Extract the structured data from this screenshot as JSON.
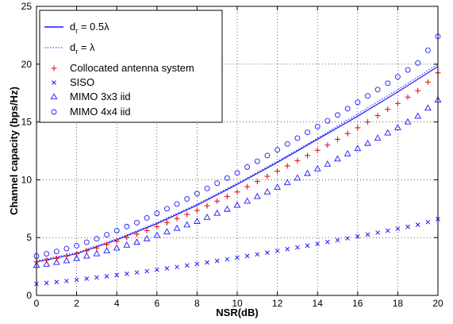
{
  "chart_data": {
    "type": "line",
    "title": "",
    "xlabel": "NSR(dB)",
    "ylabel": "Channel capacity (bps/Hz)",
    "xlim": [
      0,
      20
    ],
    "ylim": [
      0,
      25
    ],
    "xticks": [
      "0",
      "2",
      "4",
      "6",
      "8",
      "10",
      "12",
      "14",
      "16",
      "18",
      "20"
    ],
    "yticks": [
      "0",
      "5",
      "10",
      "15",
      "20",
      "25"
    ],
    "grid": "dotted",
    "legend_position": "top-left",
    "colors": {
      "blue": "#1a1aff",
      "red": "#ee1111",
      "black": "#000000"
    },
    "legend": [
      {
        "sub_prefix": "d",
        "sub": "r",
        "suffix": " = 0.5λ"
      },
      {
        "sub_prefix": "d",
        "sub": "r",
        "suffix": " = λ"
      },
      {
        "text": "Collocated antenna system"
      },
      {
        "text": "SISO"
      },
      {
        "text": "MIMO 3x3 iid"
      },
      {
        "text": "MIMO 4x4 iid"
      }
    ],
    "series": [
      {
        "name": "d_r = 0.5λ",
        "style": "line",
        "color": "#1a1aff",
        "x": [
          0,
          2,
          4,
          6,
          8,
          10,
          12,
          14,
          16,
          18,
          20
        ],
        "y": [
          2.9,
          3.6,
          4.8,
          6.2,
          7.8,
          9.6,
          11.5,
          13.5,
          15.5,
          17.6,
          19.8
        ]
      },
      {
        "name": "d_r = λ",
        "style": "dotted",
        "color": "#1a1aff",
        "x": [
          0,
          2,
          4,
          6,
          8,
          10,
          12,
          14,
          16,
          18,
          20
        ],
        "y": [
          3.0,
          3.7,
          4.9,
          6.3,
          7.9,
          9.7,
          11.6,
          13.6,
          15.7,
          17.8,
          20.0
        ]
      },
      {
        "name": "Collocated antenna system",
        "style": "plus",
        "color": "#ee1111",
        "x": [
          0,
          0.5,
          1,
          1.5,
          2,
          2.5,
          3,
          3.5,
          4,
          4.5,
          5,
          5.5,
          6,
          6.5,
          7,
          7.5,
          8,
          8.5,
          9,
          9.5,
          10,
          10.5,
          11,
          11.5,
          12,
          12.5,
          13,
          13.5,
          14,
          14.5,
          15,
          15.5,
          16,
          16.5,
          17,
          17.5,
          18,
          18.5,
          19,
          19.5,
          20
        ],
        "y": [
          2.9,
          3.05,
          3.2,
          3.4,
          3.6,
          3.85,
          4.1,
          4.4,
          4.7,
          5.0,
          5.3,
          5.6,
          5.95,
          6.3,
          6.65,
          7.0,
          7.35,
          7.75,
          8.15,
          8.55,
          8.95,
          9.4,
          9.85,
          10.3,
          10.75,
          11.2,
          11.65,
          12.1,
          12.55,
          13.0,
          13.5,
          14.0,
          14.5,
          15.0,
          15.55,
          16.1,
          16.6,
          17.15,
          17.7,
          18.45,
          19.25
        ]
      },
      {
        "name": "SISO",
        "style": "x",
        "color": "#1a1aff",
        "x": [
          0,
          0.5,
          1,
          1.5,
          2,
          2.5,
          3,
          3.5,
          4,
          4.5,
          5,
          5.5,
          6,
          6.5,
          7,
          7.5,
          8,
          8.5,
          9,
          9.5,
          10,
          10.5,
          11,
          11.5,
          12,
          12.5,
          13,
          13.5,
          14,
          14.5,
          15,
          15.5,
          16,
          16.5,
          17,
          17.5,
          18,
          18.5,
          19,
          19.5,
          20
        ],
        "y": [
          1.0,
          1.08,
          1.16,
          1.25,
          1.35,
          1.45,
          1.55,
          1.65,
          1.76,
          1.87,
          1.98,
          2.1,
          2.22,
          2.34,
          2.46,
          2.59,
          2.72,
          2.85,
          2.99,
          3.13,
          3.27,
          3.41,
          3.55,
          3.7,
          3.85,
          4.0,
          4.15,
          4.3,
          4.46,
          4.62,
          4.78,
          4.94,
          5.1,
          5.26,
          5.43,
          5.6,
          5.77,
          5.94,
          6.11,
          6.34,
          6.6
        ]
      },
      {
        "name": "MIMO 3x3 iid",
        "style": "triangle",
        "color": "#1a1aff",
        "x": [
          0,
          0.5,
          1,
          1.5,
          2,
          2.5,
          3,
          3.5,
          4,
          4.5,
          5,
          5.5,
          6,
          6.5,
          7,
          7.5,
          8,
          8.5,
          9,
          9.5,
          10,
          10.5,
          11,
          11.5,
          12,
          12.5,
          13,
          13.5,
          14,
          14.5,
          15,
          15.5,
          16,
          16.5,
          17,
          17.5,
          18,
          18.5,
          19,
          19.5,
          20
        ],
        "y": [
          2.6,
          2.7,
          2.85,
          3.0,
          3.2,
          3.4,
          3.6,
          3.85,
          4.1,
          4.35,
          4.6,
          4.9,
          5.2,
          5.5,
          5.8,
          6.1,
          6.4,
          6.75,
          7.1,
          7.45,
          7.8,
          8.15,
          8.55,
          8.95,
          9.35,
          9.75,
          10.15,
          10.55,
          10.95,
          11.35,
          11.8,
          12.25,
          12.7,
          13.15,
          13.6,
          14.05,
          14.5,
          15.0,
          15.5,
          16.2,
          16.9
        ]
      },
      {
        "name": "MIMO 4x4 iid",
        "style": "circle",
        "color": "#1a1aff",
        "x": [
          0,
          0.5,
          1,
          1.5,
          2,
          2.5,
          3,
          3.5,
          4,
          4.5,
          5,
          5.5,
          6,
          6.5,
          7,
          7.5,
          8,
          8.5,
          9,
          9.5,
          10,
          10.5,
          11,
          11.5,
          12,
          12.5,
          13,
          13.5,
          14,
          14.5,
          15,
          15.5,
          16,
          16.5,
          17,
          17.5,
          18,
          18.5,
          19,
          19.5,
          20
        ],
        "y": [
          3.4,
          3.6,
          3.8,
          4.05,
          4.3,
          4.6,
          4.9,
          5.25,
          5.6,
          5.95,
          6.3,
          6.7,
          7.1,
          7.5,
          7.9,
          8.35,
          8.8,
          9.25,
          9.7,
          10.15,
          10.6,
          11.1,
          11.6,
          12.1,
          12.6,
          13.1,
          13.6,
          14.1,
          14.6,
          15.1,
          15.6,
          16.15,
          16.7,
          17.25,
          17.8,
          18.35,
          18.9,
          19.5,
          20.1,
          21.2,
          22.4
        ]
      }
    ]
  }
}
